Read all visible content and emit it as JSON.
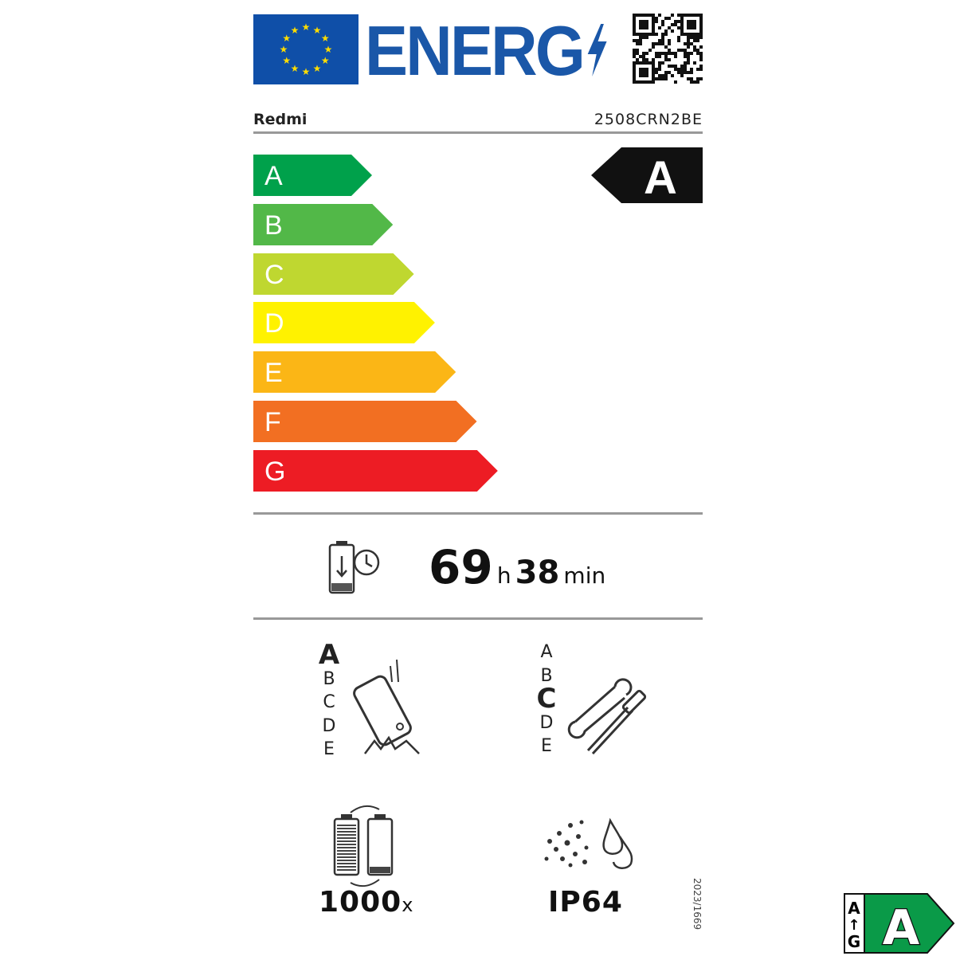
{
  "header": {
    "title": "ENERG",
    "brand": "Redmi",
    "model": "2508CRN2BE",
    "flag_icon": "eu-flag-icon",
    "qr_icon": "qr-code-icon"
  },
  "energy_scale": {
    "classes": [
      "A",
      "B",
      "C",
      "D",
      "E",
      "F",
      "G"
    ],
    "colors": [
      "#00a14b",
      "#52b848",
      "#bfd730",
      "#fff200",
      "#fbb616",
      "#f26f22",
      "#ed1c24"
    ],
    "rating": "A"
  },
  "battery_endurance": {
    "hours": "69",
    "hours_unit": "h",
    "minutes": "38",
    "minutes_unit": "min",
    "icon": "battery-clock-icon"
  },
  "drop_resistance": {
    "classes": [
      "A",
      "B",
      "C",
      "D",
      "E"
    ],
    "selected": "A",
    "icon": "phone-drop-icon"
  },
  "repairability": {
    "classes": [
      "A",
      "B",
      "C",
      "D",
      "E"
    ],
    "selected": "C",
    "icon": "tools-icon"
  },
  "battery_cycles": {
    "value": "1000",
    "unit": "x",
    "icon": "battery-cycle-icon"
  },
  "ingress_protection": {
    "value": "IP64",
    "icon": "dust-water-icon"
  },
  "regulation": "2023/1669",
  "badge": {
    "top": "A",
    "bottom": "G",
    "class": "A",
    "color": "#0a9a48"
  }
}
